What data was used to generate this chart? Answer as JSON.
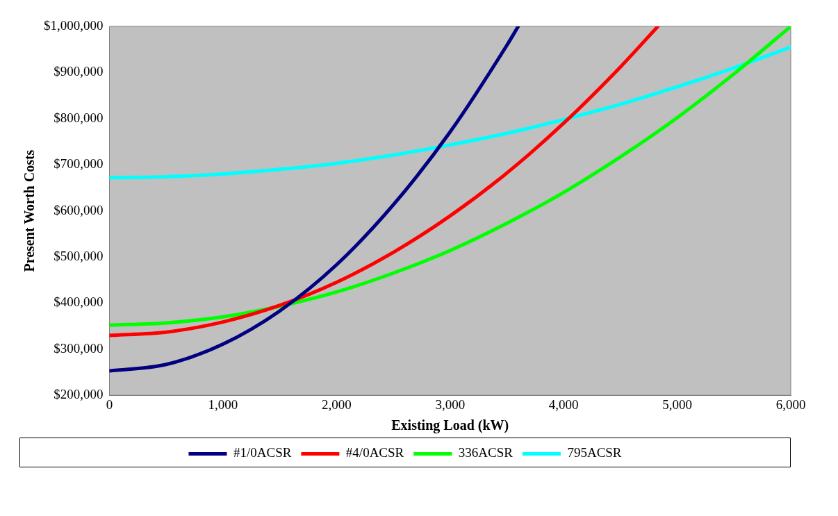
{
  "chart_data": {
    "type": "line",
    "xlabel": "Existing Load (kW)",
    "ylabel": "Present Worth Costs",
    "xlim": [
      0,
      6000
    ],
    "ylim": [
      200000,
      1000000
    ],
    "xticks": [
      0,
      {
        "value": 1000,
        "label": "1,000"
      },
      {
        "value": 2000,
        "label": "2,000"
      },
      {
        "value": 3000,
        "label": "3,000"
      },
      {
        "value": 4000,
        "label": "4,000"
      },
      {
        "value": 5000,
        "label": "5,000"
      },
      {
        "value": 6000,
        "label": "6,000"
      }
    ],
    "yticks": [
      {
        "value": 200000,
        "label": "$200,000"
      },
      {
        "value": 300000,
        "label": "$300,000"
      },
      {
        "value": 400000,
        "label": "$400,000"
      },
      {
        "value": 500000,
        "label": "$500,000"
      },
      {
        "value": 600000,
        "label": "$600,000"
      },
      {
        "value": 700000,
        "label": "$700,000"
      },
      {
        "value": 800000,
        "label": "$800,000"
      },
      {
        "value": 900000,
        "label": "$900,000"
      },
      {
        "value": 1000000,
        "label": "$1,000,000"
      }
    ],
    "grid": false,
    "legend": "bottom",
    "marker": "none",
    "line_style": "solid",
    "series": [
      {
        "name": "#1/0ACSR",
        "color": "#000080",
        "x": [
          0,
          500,
          1000,
          1500,
          2000,
          2500,
          3000,
          3500,
          3600
        ],
        "values": [
          253000,
          267000,
          311000,
          383000,
          483000,
          613000,
          771000,
          959000,
          1000000
        ]
      },
      {
        "name": "#4/0ACSR",
        "color": "#ff0000",
        "x": [
          0,
          500,
          1000,
          1500,
          2000,
          2500,
          3000,
          3500,
          4000,
          4500,
          4830
        ],
        "values": [
          330000,
          337000,
          359000,
          395000,
          445000,
          510000,
          589000,
          682000,
          790000,
          912000,
          1000000
        ]
      },
      {
        "name": "336ACSR",
        "color": "#00ff00",
        "x": [
          0,
          500,
          1000,
          1500,
          2000,
          2500,
          3000,
          3500,
          4000,
          4500,
          5000,
          5500,
          6000
        ],
        "values": [
          352000,
          357000,
          370000,
          393000,
          424000,
          465000,
          514000,
          573000,
          640000,
          717000,
          802000,
          897000,
          1000000
        ]
      },
      {
        "name": "795ACSR",
        "color": "#00ffff",
        "x": [
          0,
          500,
          1000,
          1500,
          2000,
          2500,
          3000,
          3500,
          4000,
          4500,
          5000,
          5500,
          6000
        ],
        "values": [
          672000,
          674000,
          680000,
          690000,
          703000,
          721000,
          743000,
          768000,
          798000,
          831000,
          869000,
          910000,
          955000
        ]
      }
    ]
  }
}
